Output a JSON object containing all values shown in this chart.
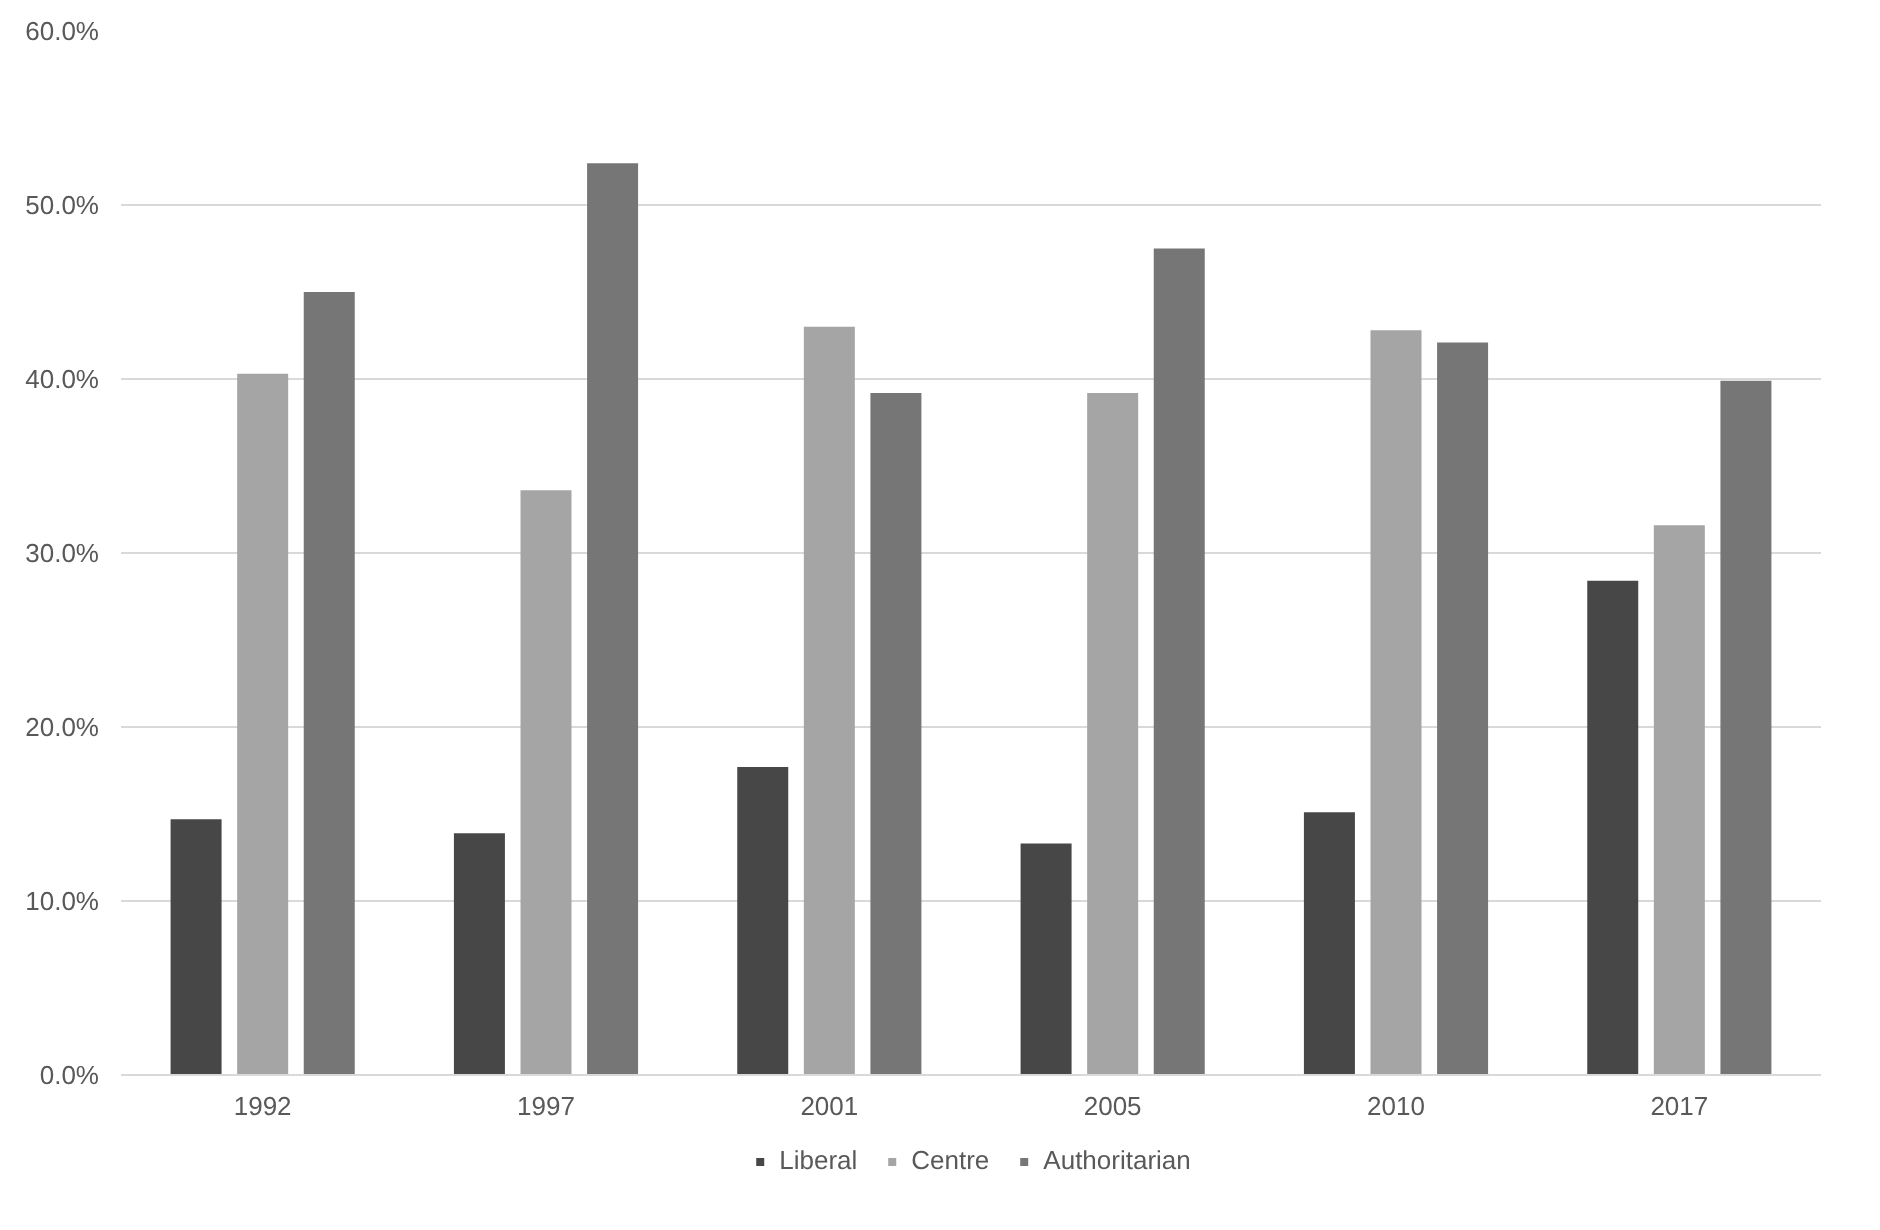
{
  "chart_data": {
    "type": "bar",
    "categories": [
      "1992",
      "1997",
      "2001",
      "2005",
      "2010",
      "2017"
    ],
    "series": [
      {
        "name": "Liberal",
        "color": "#474747",
        "values": [
          14.7,
          13.9,
          17.7,
          13.3,
          15.1,
          28.4
        ]
      },
      {
        "name": "Centre",
        "color": "#a5a5a5",
        "values": [
          40.3,
          33.6,
          43.0,
          39.2,
          42.8,
          31.6
        ]
      },
      {
        "name": "Authoritarian",
        "color": "#767676",
        "values": [
          45.0,
          52.4,
          39.2,
          47.5,
          42.1,
          39.9
        ]
      }
    ],
    "ylim": [
      0,
      60
    ],
    "yticks": [
      {
        "value": 0,
        "label": "0.0%"
      },
      {
        "value": 10,
        "label": "10.0%"
      },
      {
        "value": 20,
        "label": "20.0%"
      },
      {
        "value": 30,
        "label": "30.0%"
      },
      {
        "value": 40,
        "label": "40.0%"
      },
      {
        "value": 50,
        "label": "50.0%"
      },
      {
        "value": 60,
        "label": "60.0%"
      }
    ],
    "grid": "y",
    "legend": "bottom"
  }
}
